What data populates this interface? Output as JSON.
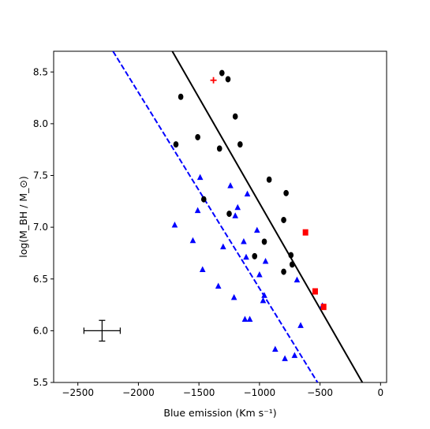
{
  "chart_data": {
    "type": "scatter",
    "xlabel": "Blue emission (Km s⁻¹)",
    "ylabel": "log(M_BH / M_⊙)",
    "xlim": [
      -2700,
      50
    ],
    "ylim": [
      5.5,
      8.7
    ],
    "xticks": [
      -2500,
      -2000,
      -1500,
      -1000,
      -500,
      0
    ],
    "xtick_labels": [
      "−2500",
      "−2000",
      "−1500",
      "−1000",
      "−500",
      "0"
    ],
    "yticks": [
      5.5,
      6.0,
      6.5,
      7.0,
      7.5,
      8.0,
      8.5
    ],
    "ytick_labels": [
      "5.5",
      "6.0",
      "6.5",
      "7.0",
      "7.5",
      "8.0",
      "8.5"
    ],
    "grid": false,
    "colors": {
      "circles": "#000000",
      "triangles": "#0000ff",
      "squares": "#ff0000",
      "plus": "#ff0000",
      "solid_line": "#000000",
      "dashed_line": "#0000ff"
    },
    "series": [
      {
        "marker": "circle",
        "x": [
          -1310,
          -1260,
          -1650,
          -1200,
          -1510,
          -1690,
          -1330,
          -1160,
          -920,
          -780,
          -1460,
          -1250,
          -800,
          -960,
          -1040,
          -740,
          -730,
          -800
        ],
        "y": [
          8.49,
          8.43,
          8.26,
          8.07,
          7.87,
          7.8,
          7.76,
          7.8,
          7.46,
          7.33,
          7.27,
          7.13,
          7.07,
          6.86,
          6.72,
          6.73,
          6.64,
          6.57
        ]
      },
      {
        "marker": "triangle",
        "x": [
          -1700,
          -1490,
          -1510,
          -1550,
          -1470,
          -1300,
          -1240,
          -1200,
          -1180,
          -1100,
          -1130,
          -1110,
          -1020,
          -950,
          -1000,
          -1340,
          -1210,
          -960,
          -970,
          -1120,
          -1080,
          -870,
          -690,
          -660,
          -790,
          -710,
          -480
        ],
        "y": [
          7.02,
          7.48,
          7.16,
          6.87,
          6.59,
          6.81,
          7.4,
          7.11,
          7.19,
          7.32,
          6.86,
          6.71,
          6.97,
          6.67,
          6.54,
          6.43,
          6.32,
          6.34,
          6.29,
          6.11,
          6.11,
          5.82,
          6.49,
          6.05,
          5.73,
          5.76,
          6.24
        ]
      },
      {
        "marker": "square",
        "x": [
          -620,
          -540,
          -470
        ],
        "y": [
          6.95,
          6.38,
          6.23
        ]
      },
      {
        "marker": "plus",
        "x": [
          -1380
        ],
        "y": [
          8.42
        ]
      }
    ],
    "lines": [
      {
        "style": "solid",
        "x": [
          -1720,
          -150
        ],
        "y": [
          8.7,
          5.5
        ]
      },
      {
        "style": "dashed",
        "x": [
          -2210,
          -520
        ],
        "y": [
          8.7,
          5.5
        ]
      }
    ],
    "error_bar": {
      "x": -2300,
      "y": 6.0,
      "xerr": 150,
      "yerr": 0.1
    }
  }
}
